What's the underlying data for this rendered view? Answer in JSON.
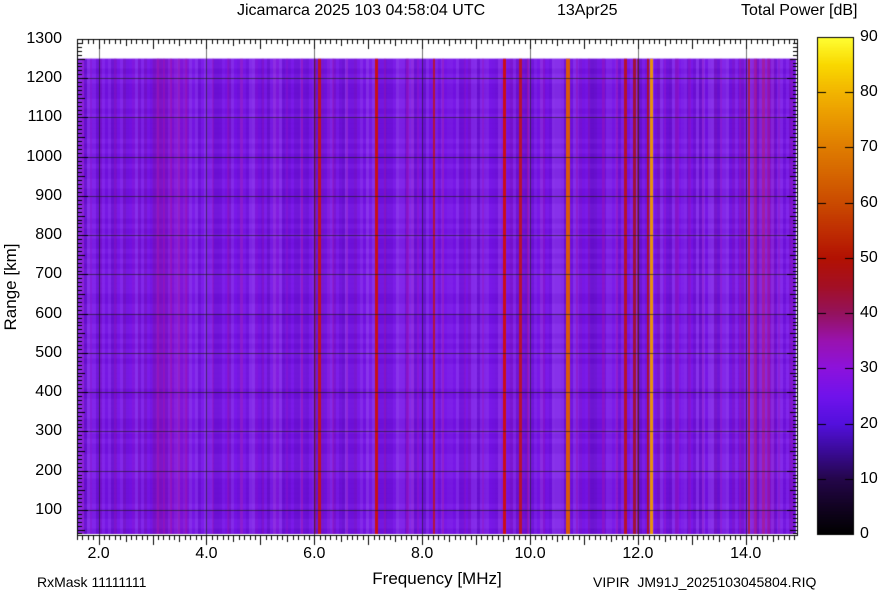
{
  "chart_data": {
    "type": "heatmap",
    "title": "Jicamarca 2025 103 04:58:04 UTC",
    "date_label": "13Apr25",
    "colorbar_title": "Total Power [dB]",
    "xlabel": "Frequency [MHz]",
    "ylabel": "Range [km]",
    "annotations": {
      "rx_mask": "RxMask 11111111",
      "file_label": "VIPIR  JM91J_2025103045804.RIQ"
    },
    "x_axis": {
      "unit": "MHz",
      "min": 1.6,
      "max": 14.95,
      "minor_step": 0.1,
      "major_step": 1.0,
      "grid_step": 2.0,
      "tick_labels": [
        {
          "v": 2,
          "t": "2.0"
        },
        {
          "v": 4,
          "t": "4.0"
        },
        {
          "v": 6,
          "t": "6.0"
        },
        {
          "v": 8,
          "t": "8.0"
        },
        {
          "v": 10,
          "t": "10.0"
        },
        {
          "v": 12,
          "t": "12.0"
        },
        {
          "v": 14,
          "t": "14.0"
        }
      ]
    },
    "y_axis": {
      "unit": "km",
      "min": 36,
      "max": 1300,
      "minor_step": 10,
      "mid_step": 50,
      "major_step": 100,
      "tick_labels": [
        {
          "v": 100,
          "t": "100"
        },
        {
          "v": 200,
          "t": "200"
        },
        {
          "v": 300,
          "t": "300"
        },
        {
          "v": 400,
          "t": "400"
        },
        {
          "v": 500,
          "t": "500"
        },
        {
          "v": 600,
          "t": "600"
        },
        {
          "v": 700,
          "t": "700"
        },
        {
          "v": 800,
          "t": "800"
        },
        {
          "v": 900,
          "t": "900"
        },
        {
          "v": 1000,
          "t": "1000"
        },
        {
          "v": 1100,
          "t": "1100"
        },
        {
          "v": 1200,
          "t": "1200"
        },
        {
          "v": 1300,
          "t": "1300"
        }
      ]
    },
    "data_range_km": {
      "min": 40,
      "max": 1250
    },
    "background_level_db": 23,
    "background_color": "#7612e8",
    "grid_color": "rgba(25,25,25,0.6)",
    "frame_color": "#000000",
    "colorbar": {
      "min": 0,
      "max": 90,
      "tick_step": 10,
      "tick_labels": [
        {
          "v": 0,
          "t": "0"
        },
        {
          "v": 10,
          "t": "10"
        },
        {
          "v": 20,
          "t": "20"
        },
        {
          "v": 30,
          "t": "30"
        },
        {
          "v": 40,
          "t": "40"
        },
        {
          "v": 50,
          "t": "50"
        },
        {
          "v": 60,
          "t": "60"
        },
        {
          "v": 70,
          "t": "70"
        },
        {
          "v": 80,
          "t": "80"
        },
        {
          "v": 90,
          "t": "90"
        }
      ],
      "stops": [
        {
          "db": 0,
          "c": "#000000"
        },
        {
          "db": 5,
          "c": "#120322"
        },
        {
          "db": 10,
          "c": "#24064a"
        },
        {
          "db": 15,
          "c": "#3a0a96"
        },
        {
          "db": 20,
          "c": "#5310dd"
        },
        {
          "db": 25,
          "c": "#7012ec"
        },
        {
          "db": 30,
          "c": "#8c12dd"
        },
        {
          "db": 35,
          "c": "#9912b0"
        },
        {
          "db": 40,
          "c": "#94125e"
        },
        {
          "db": 45,
          "c": "#a30f24"
        },
        {
          "db": 50,
          "c": "#b21102"
        },
        {
          "db": 55,
          "c": "#bf2e02"
        },
        {
          "db": 60,
          "c": "#ca4a00"
        },
        {
          "db": 65,
          "c": "#d56400"
        },
        {
          "db": 70,
          "c": "#df7c00"
        },
        {
          "db": 75,
          "c": "#e99700"
        },
        {
          "db": 80,
          "c": "#f2b400"
        },
        {
          "db": 85,
          "c": "#f9d800"
        },
        {
          "db": 90,
          "c": "#ffff33"
        }
      ]
    },
    "rfi_bands": [
      {
        "f1": 3.0,
        "f2": 3.65,
        "c": "#a012a8",
        "a": 0.22
      },
      {
        "f1": 9.4,
        "f2": 10.0,
        "c": "#8f12c8",
        "a": 0.1
      },
      {
        "f1": 14.1,
        "f2": 14.55,
        "c": "#a312a0",
        "a": 0.18
      }
    ],
    "rfi_stripes": [
      {
        "f": 1.72,
        "w": 2,
        "c": "#8d12c8",
        "a": 0.45
      },
      {
        "f": 1.86,
        "w": 2,
        "c": "#8d12c8",
        "a": 0.35
      },
      {
        "f": 2.3,
        "w": 2,
        "c": "#8d12c8",
        "a": 0.3
      },
      {
        "f": 2.75,
        "w": 2,
        "c": "#9313c0",
        "a": 0.3
      },
      {
        "f": 3.1,
        "w": 2,
        "c": "#a313a9",
        "a": 0.5
      },
      {
        "f": 3.22,
        "w": 2,
        "c": "#a313a9",
        "a": 0.45
      },
      {
        "f": 3.35,
        "w": 2,
        "c": "#a313a9",
        "a": 0.5
      },
      {
        "f": 3.5,
        "w": 2,
        "c": "#a313a9",
        "a": 0.4
      },
      {
        "f": 3.62,
        "w": 2,
        "c": "#a313a9",
        "a": 0.35
      },
      {
        "f": 4.12,
        "w": 2,
        "c": "#9a13b5",
        "a": 0.35
      },
      {
        "f": 4.4,
        "w": 2,
        "c": "#9a13b5",
        "a": 0.4
      },
      {
        "f": 4.65,
        "w": 3,
        "c": "#9a13b5",
        "a": 0.45
      },
      {
        "f": 5.05,
        "w": 2,
        "c": "#9a13b5",
        "a": 0.3
      },
      {
        "f": 5.5,
        "w": 2,
        "c": "#9a13b5",
        "a": 0.3
      },
      {
        "f": 5.78,
        "w": 2,
        "c": "#a812a0",
        "a": 0.4
      },
      {
        "f": 6.02,
        "w": 2,
        "c": "#b81230",
        "a": 0.5
      },
      {
        "f": 6.1,
        "w": 3,
        "c": "#c41111",
        "a": 0.9
      },
      {
        "f": 6.35,
        "w": 2,
        "c": "#9a13b5",
        "a": 0.35
      },
      {
        "f": 6.6,
        "w": 2,
        "c": "#9a13b5",
        "a": 0.3
      },
      {
        "f": 7.16,
        "w": 3,
        "c": "#cc0f0f",
        "a": 0.95
      },
      {
        "f": 7.32,
        "w": 2,
        "c": "#a213b0",
        "a": 0.4
      },
      {
        "f": 7.72,
        "w": 3,
        "c": "#9c12b8",
        "a": 0.55
      },
      {
        "f": 7.92,
        "w": 2,
        "c": "#9a13b5",
        "a": 0.35
      },
      {
        "f": 8.22,
        "w": 2,
        "c": "#c01414",
        "a": 0.8
      },
      {
        "f": 8.38,
        "w": 2,
        "c": "#a013b0",
        "a": 0.45
      },
      {
        "f": 8.8,
        "w": 2,
        "c": "#9a13b5",
        "a": 0.3
      },
      {
        "f": 9.12,
        "w": 2,
        "c": "#9a13b5",
        "a": 0.35
      },
      {
        "f": 9.53,
        "w": 3,
        "c": "#d00d0d",
        "a": 0.95
      },
      {
        "f": 9.82,
        "w": 3,
        "c": "#c21313",
        "a": 0.85
      },
      {
        "f": 9.97,
        "w": 2,
        "c": "#ab12a0",
        "a": 0.5
      },
      {
        "f": 10.25,
        "w": 2,
        "c": "#9a13b5",
        "a": 0.35
      },
      {
        "f": 10.7,
        "w": 4,
        "c": "#dd5f00",
        "a": 0.95
      },
      {
        "f": 10.88,
        "w": 2,
        "c": "#a013b0",
        "a": 0.4
      },
      {
        "f": 11.1,
        "w": 2,
        "c": "#9a13b5",
        "a": 0.35
      },
      {
        "f": 11.36,
        "w": 3,
        "c": "#9c12b8",
        "a": 0.5
      },
      {
        "f": 11.62,
        "w": 2,
        "c": "#a812a8",
        "a": 0.4
      },
      {
        "f": 11.77,
        "w": 3,
        "c": "#c41111",
        "a": 0.85
      },
      {
        "f": 11.93,
        "w": 3,
        "c": "#a50e0e",
        "a": 0.8
      },
      {
        "f": 12.0,
        "w": 2,
        "c": "#a50e0e",
        "a": 0.6
      },
      {
        "f": 12.18,
        "w": 2,
        "c": "#bb1100",
        "a": 0.8
      },
      {
        "f": 12.26,
        "w": 3,
        "c": "#ee9900",
        "a": 0.95
      },
      {
        "f": 12.5,
        "w": 2,
        "c": "#9a13b5",
        "a": 0.3
      },
      {
        "f": 12.72,
        "w": 4,
        "c": "#9c14c0",
        "a": 0.5
      },
      {
        "f": 12.95,
        "w": 3,
        "c": "#9c14c0",
        "a": 0.4
      },
      {
        "f": 13.2,
        "w": 2,
        "c": "#9a13b5",
        "a": 0.3
      },
      {
        "f": 13.55,
        "w": 2,
        "c": "#9a13b5",
        "a": 0.3
      },
      {
        "f": 13.9,
        "w": 2,
        "c": "#a013b0",
        "a": 0.4
      },
      {
        "f": 14.06,
        "w": 2,
        "c": "#bb1d1d",
        "a": 0.75
      },
      {
        "f": 14.18,
        "w": 3,
        "c": "#aa1488",
        "a": 0.6
      },
      {
        "f": 14.32,
        "w": 3,
        "c": "#b01478",
        "a": 0.55
      },
      {
        "f": 14.42,
        "w": 3,
        "c": "#a81490",
        "a": 0.5
      },
      {
        "f": 14.62,
        "w": 2,
        "c": "#9a13b5",
        "a": 0.35
      },
      {
        "f": 14.85,
        "w": 2,
        "c": "#9a13b5",
        "a": 0.4
      }
    ],
    "texture": {
      "col_step": 3,
      "col_alpha": 0.12,
      "pink_col_alpha": 0.1,
      "row_step": 5,
      "row_alpha": 0.03
    }
  }
}
